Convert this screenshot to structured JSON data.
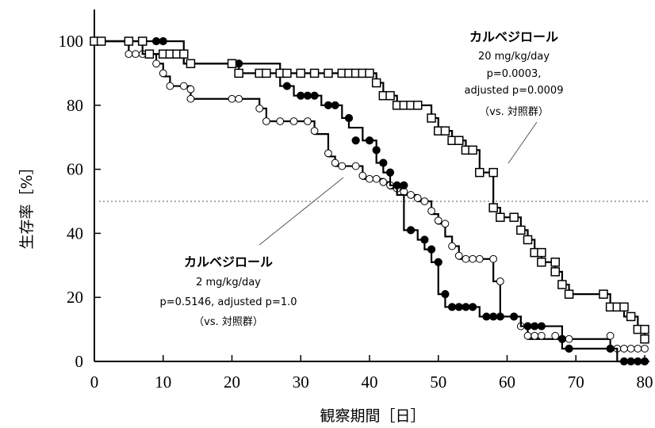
{
  "chart_data": {
    "type": "line",
    "xlabel": "観察期間［日］",
    "ylabel": "生存率［%］",
    "xlim": [
      0,
      80
    ],
    "ylim": [
      0,
      100
    ],
    "xticks": [
      "0",
      "10",
      "20",
      "30",
      "40",
      "50",
      "60",
      "70",
      "80"
    ],
    "yticks": [
      "0",
      "20",
      "40",
      "60",
      "80",
      "100"
    ],
    "grid": false,
    "reference_line": {
      "y": 50,
      "style": "dotted"
    },
    "series": [
      {
        "marker": "filled-circle",
        "step": [
          [
            0,
            100
          ],
          [
            13,
            93
          ],
          [
            27,
            86
          ],
          [
            29,
            83
          ],
          [
            33,
            80
          ],
          [
            36,
            76
          ],
          [
            37,
            73
          ],
          [
            39,
            69
          ],
          [
            41,
            62
          ],
          [
            42,
            59
          ],
          [
            43,
            55
          ],
          [
            44,
            52
          ],
          [
            45,
            41
          ],
          [
            47,
            38
          ],
          [
            48,
            35
          ],
          [
            49,
            31
          ],
          [
            50,
            21
          ],
          [
            51,
            17
          ],
          [
            56,
            14
          ],
          [
            62,
            11
          ],
          [
            68,
            4
          ],
          [
            76,
            0
          ],
          [
            80,
            0
          ]
        ],
        "markers": [
          [
            9,
            100
          ],
          [
            10,
            100
          ],
          [
            21,
            93
          ],
          [
            28,
            86
          ],
          [
            30,
            83
          ],
          [
            31,
            83
          ],
          [
            32,
            83
          ],
          [
            34,
            80
          ],
          [
            35,
            80
          ],
          [
            37,
            76
          ],
          [
            38,
            69
          ],
          [
            40,
            69
          ],
          [
            41,
            66
          ],
          [
            42,
            62
          ],
          [
            43,
            59
          ],
          [
            44,
            55
          ],
          [
            45,
            55
          ],
          [
            46,
            41
          ],
          [
            48,
            38
          ],
          [
            49,
            35
          ],
          [
            50,
            31
          ],
          [
            51,
            21
          ],
          [
            52,
            17
          ],
          [
            53,
            17
          ],
          [
            54,
            17
          ],
          [
            55,
            17
          ],
          [
            57,
            14
          ],
          [
            58,
            14
          ],
          [
            59,
            14
          ],
          [
            61,
            14
          ],
          [
            63,
            11
          ],
          [
            64,
            11
          ],
          [
            65,
            11
          ],
          [
            68,
            7
          ],
          [
            69,
            4
          ],
          [
            75,
            4
          ],
          [
            77,
            0
          ],
          [
            78,
            0
          ],
          [
            79,
            0
          ],
          [
            80,
            0
          ]
        ]
      },
      {
        "marker": "open-circle",
        "step": [
          [
            0,
            100
          ],
          [
            5,
            96
          ],
          [
            9,
            93
          ],
          [
            10,
            89
          ],
          [
            11,
            86
          ],
          [
            14,
            82
          ],
          [
            24,
            79
          ],
          [
            25,
            75
          ],
          [
            32,
            71
          ],
          [
            34,
            64
          ],
          [
            35,
            61
          ],
          [
            39,
            57
          ],
          [
            42,
            56
          ],
          [
            43,
            54
          ],
          [
            45,
            52
          ],
          [
            47,
            50
          ],
          [
            49,
            46
          ],
          [
            50,
            43
          ],
          [
            51,
            39
          ],
          [
            52,
            36
          ],
          [
            53,
            32
          ],
          [
            58,
            25
          ],
          [
            59,
            14
          ],
          [
            62,
            11
          ],
          [
            63,
            7
          ],
          [
            75,
            4
          ],
          [
            80,
            4
          ]
        ],
        "markers": [
          [
            5,
            96
          ],
          [
            6,
            96
          ],
          [
            7,
            96
          ],
          [
            9,
            93
          ],
          [
            10,
            90
          ],
          [
            11,
            86
          ],
          [
            13,
            86
          ],
          [
            14,
            85
          ],
          [
            14,
            82
          ],
          [
            20,
            82
          ],
          [
            21,
            82
          ],
          [
            24,
            79
          ],
          [
            25,
            75
          ],
          [
            27,
            75
          ],
          [
            29,
            75
          ],
          [
            31,
            75
          ],
          [
            32,
            72
          ],
          [
            34,
            65
          ],
          [
            35,
            62
          ],
          [
            36,
            61
          ],
          [
            38,
            61
          ],
          [
            39,
            58
          ],
          [
            40,
            57
          ],
          [
            41,
            57
          ],
          [
            42,
            56
          ],
          [
            43,
            55
          ],
          [
            44,
            54
          ],
          [
            45,
            53
          ],
          [
            46,
            52
          ],
          [
            47,
            51
          ],
          [
            48,
            50
          ],
          [
            49,
            47
          ],
          [
            50,
            44
          ],
          [
            51,
            43
          ],
          [
            52,
            36
          ],
          [
            53,
            33
          ],
          [
            54,
            32
          ],
          [
            55,
            32
          ],
          [
            56,
            32
          ],
          [
            58,
            32
          ],
          [
            59,
            25
          ],
          [
            61,
            14
          ],
          [
            62,
            11
          ],
          [
            63,
            11
          ],
          [
            63,
            8
          ],
          [
            64,
            8
          ],
          [
            65,
            8
          ],
          [
            67,
            8
          ],
          [
            69,
            7
          ],
          [
            75,
            8
          ],
          [
            76,
            4
          ],
          [
            77,
            4
          ],
          [
            78,
            4
          ],
          [
            79,
            4
          ],
          [
            80,
            4
          ]
        ]
      },
      {
        "marker": "open-square",
        "step": [
          [
            0,
            100
          ],
          [
            7,
            96
          ],
          [
            13,
            93
          ],
          [
            21,
            90
          ],
          [
            41,
            87
          ],
          [
            42,
            83
          ],
          [
            44,
            80
          ],
          [
            49,
            76
          ],
          [
            50,
            72
          ],
          [
            52,
            69
          ],
          [
            54,
            66
          ],
          [
            56,
            59
          ],
          [
            58,
            48
          ],
          [
            59,
            45
          ],
          [
            62,
            41
          ],
          [
            63,
            38
          ],
          [
            64,
            34
          ],
          [
            65,
            31
          ],
          [
            67,
            28
          ],
          [
            68,
            24
          ],
          [
            69,
            21
          ],
          [
            75,
            17
          ],
          [
            77,
            14
          ],
          [
            79,
            10
          ],
          [
            80,
            7
          ]
        ],
        "markers": [
          [
            0,
            100
          ],
          [
            1,
            100
          ],
          [
            5,
            100
          ],
          [
            7,
            100
          ],
          [
            8,
            96
          ],
          [
            10,
            96
          ],
          [
            11,
            96
          ],
          [
            12,
            96
          ],
          [
            13,
            96
          ],
          [
            14,
            93
          ],
          [
            20,
            93
          ],
          [
            21,
            90
          ],
          [
            24,
            90
          ],
          [
            25,
            90
          ],
          [
            27,
            90
          ],
          [
            28,
            90
          ],
          [
            30,
            90
          ],
          [
            32,
            90
          ],
          [
            34,
            90
          ],
          [
            36,
            90
          ],
          [
            37,
            90
          ],
          [
            38,
            90
          ],
          [
            39,
            90
          ],
          [
            40,
            90
          ],
          [
            41,
            87
          ],
          [
            42,
            83
          ],
          [
            43,
            83
          ],
          [
            44,
            80
          ],
          [
            45,
            80
          ],
          [
            46,
            80
          ],
          [
            47,
            80
          ],
          [
            49,
            76
          ],
          [
            50,
            72
          ],
          [
            51,
            72
          ],
          [
            52,
            69
          ],
          [
            53,
            69
          ],
          [
            54,
            66
          ],
          [
            55,
            66
          ],
          [
            56,
            59
          ],
          [
            58,
            59
          ],
          [
            58,
            48
          ],
          [
            59,
            45
          ],
          [
            61,
            45
          ],
          [
            62,
            41
          ],
          [
            63,
            38
          ],
          [
            64,
            34
          ],
          [
            65,
            34
          ],
          [
            65,
            31
          ],
          [
            67,
            31
          ],
          [
            67,
            28
          ],
          [
            68,
            24
          ],
          [
            69,
            21
          ],
          [
            74,
            21
          ],
          [
            75,
            17
          ],
          [
            76,
            17
          ],
          [
            77,
            17
          ],
          [
            78,
            14
          ],
          [
            79,
            10
          ],
          [
            80,
            10
          ],
          [
            80,
            7
          ]
        ]
      }
    ],
    "annotations": [
      {
        "lines": [
          "カルベジロール",
          "20 mg/kg/day",
          "p=0.0003,",
          "adjusted p=0.0009",
          "（vs. 対照群）"
        ]
      },
      {
        "lines": [
          "カルベジロール",
          "2 mg/kg/day",
          "p=0.5146, adjusted p=1.0",
          "（vs. 対照群）"
        ]
      }
    ]
  }
}
